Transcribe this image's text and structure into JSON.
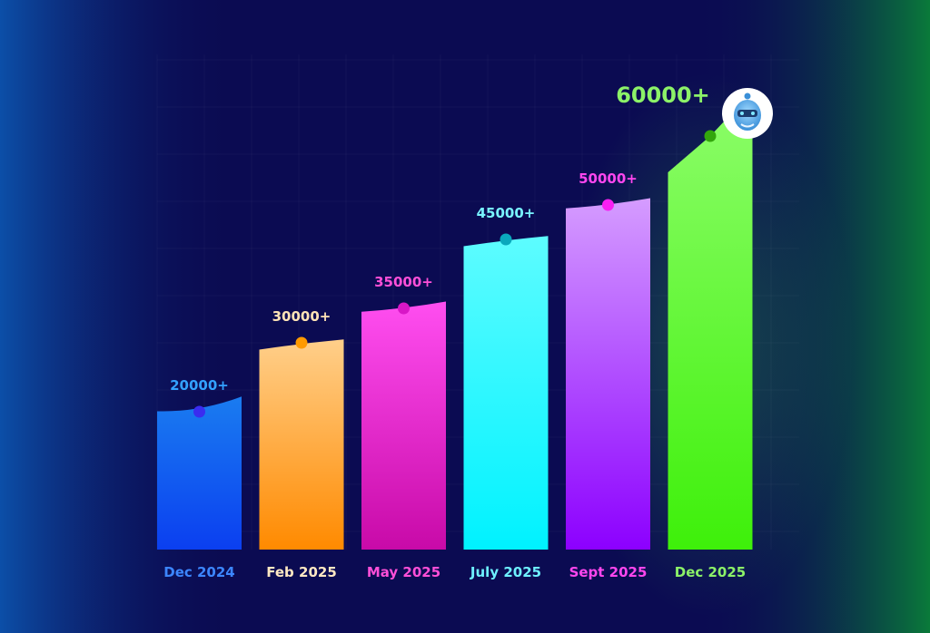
{
  "chart_data": {
    "type": "bar",
    "title": "",
    "xlabel": "",
    "ylabel": "",
    "ylim": [
      0,
      60000
    ],
    "grid": true,
    "legend": "none",
    "categories": [
      "Dec 2024",
      "Feb 2025",
      "May 2025",
      "July 2025",
      "Sept 2025",
      "Dec 2025"
    ],
    "values": [
      20000,
      30000,
      35000,
      45000,
      50000,
      60000
    ],
    "value_labels": [
      "20000+",
      "30000+",
      "35000+",
      "45000+",
      "50000+",
      "60000+"
    ],
    "colors": {
      "bar_top": [
        "#1a7cf0",
        "#ffcf8a",
        "#ff4ef0",
        "#5dfcff",
        "#d59cff",
        "#8dfd6a"
      ],
      "bar_bottom": [
        "#0b3ff0",
        "#ff8a00",
        "#c80aa8",
        "#00f2ff",
        "#8c00ff",
        "#3ef00a"
      ],
      "dot": [
        "#3a2cf0",
        "#ff9a00",
        "#d817c7",
        "#0aa9bd",
        "#f91ff3",
        "#33a60c"
      ],
      "value_label": [
        "#33a2ff",
        "#ffe3b6",
        "#ff4fd8",
        "#79f4ff",
        "#ff46ef",
        "#8cf268"
      ],
      "category_label": [
        "#3c86ff",
        "#ffe8c3",
        "#ff4fd8",
        "#6ef0ff",
        "#ff46ef",
        "#8cf268"
      ]
    },
    "icon": "robot-avatar-icon"
  }
}
